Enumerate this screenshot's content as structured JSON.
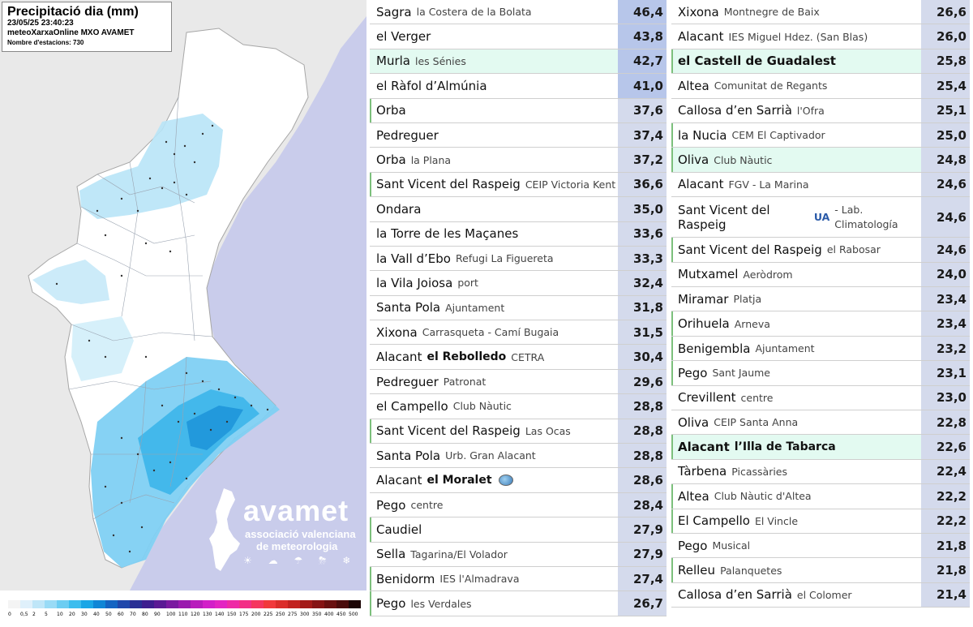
{
  "map": {
    "title": "Precipitació dia (mm)",
    "datetime": "23/05/25 23:40:23",
    "source": "meteoXarxaOnline MXO AVAMET",
    "stations_count": "Nombre d'estacions: 730",
    "logo": {
      "brand": "avamet",
      "line1": "associació valenciana",
      "line2": "de meteorologia",
      "icons": "☀ ☁ ☂ ⛈ ❄"
    },
    "legend": {
      "labels": [
        "0",
        "0,5",
        "2",
        "5",
        "10",
        "20",
        "30",
        "40",
        "50",
        "60",
        "70",
        "80",
        "90",
        "100",
        "110",
        "120",
        "130",
        "140",
        "150",
        "175",
        "200",
        "225",
        "250",
        "275",
        "300",
        "350",
        "400",
        "450",
        "500"
      ],
      "colors": [
        "#f4f4f4",
        "#dff0fb",
        "#bfe6f8",
        "#99dbf6",
        "#6ccdf2",
        "#3cbdee",
        "#1aa6e6",
        "#0f86d6",
        "#1464c2",
        "#1f47ab",
        "#2a2f95",
        "#3e1e8f",
        "#5a1a94",
        "#7a1aa0",
        "#9a1aae",
        "#b81cbc",
        "#d21fc8",
        "#e324c2",
        "#ee2aa6",
        "#f32f86",
        "#f5365f",
        "#f1393b",
        "#db2d2a",
        "#c2221f",
        "#a31a18",
        "#861414",
        "#691010",
        "#4a0b0b",
        "#1c0505"
      ]
    }
  },
  "left_table": [
    {
      "station": "Sagra",
      "location": "la Costera de la Bolata",
      "value": "46,4",
      "hot": true
    },
    {
      "station": "el Verger",
      "location": "",
      "value": "43,8",
      "hot": true
    },
    {
      "station": "Murla",
      "location": "les Sénies",
      "value": "42,7",
      "hot": true,
      "bg": true
    },
    {
      "station": "el Ràfol d’Almúnia",
      "location": "",
      "value": "41,0",
      "hot": true
    },
    {
      "station": "Orba",
      "location": "",
      "value": "37,6",
      "hl": true
    },
    {
      "station": "Pedreguer",
      "location": "",
      "value": "37,4"
    },
    {
      "station": "Orba",
      "location": "la Plana",
      "value": "37,2"
    },
    {
      "station": "Sant Vicent del Raspeig",
      "location": "CEIP Victoria Kent",
      "value": "36,6",
      "hl": true
    },
    {
      "station": "Ondara",
      "location": "",
      "value": "35,0"
    },
    {
      "station": "la Torre de les Maçanes",
      "location": "",
      "value": "33,6"
    },
    {
      "station": "la Vall d’Ebo",
      "location": "Refugi La Figuereta",
      "value": "33,3"
    },
    {
      "station": "la Vila Joiosa",
      "location": "port",
      "value": "32,4"
    },
    {
      "station": "Santa Pola",
      "location": "Ajuntament",
      "value": "31,8"
    },
    {
      "station": "Xixona",
      "location": "Carrasqueta - Camí Bugaia",
      "value": "31,5"
    },
    {
      "station": "Alacant",
      "location_bold": "el Rebolledo",
      "location": "CETRA",
      "value": "30,4"
    },
    {
      "station": "Pedreguer",
      "location": "Patronat",
      "value": "29,6"
    },
    {
      "station": "el Campello",
      "location": "Club Nàutic",
      "value": "28,8"
    },
    {
      "station": "Sant Vicent del Raspeig",
      "location": "Las Ocas",
      "value": "28,8",
      "hl": true
    },
    {
      "station": "Santa Pola",
      "location": "Urb. Gran Alacant",
      "value": "28,8"
    },
    {
      "station": "Alacant",
      "location_bold": "el Moralet",
      "location": "",
      "value": "28,6",
      "icon": "globe-icon"
    },
    {
      "station": "Pego",
      "location": "centre",
      "value": "28,4"
    },
    {
      "station": "Caudiel",
      "location": "",
      "value": "27,9",
      "hl": true
    },
    {
      "station": "Sella",
      "location": "Tagarina/El Volador",
      "value": "27,9"
    },
    {
      "station": "Benidorm",
      "location": "IES l'Almadrava",
      "value": "27,4",
      "hl": true
    },
    {
      "station": "Pego",
      "location": "les Verdales",
      "value": "26,7",
      "hl": true
    }
  ],
  "right_table": [
    {
      "station": "Xixona",
      "location": "Montnegre de Baix",
      "value": "26,6"
    },
    {
      "station": "Alacant",
      "location": "IES Miguel Hdez. (San Blas)",
      "value": "26,0"
    },
    {
      "station": "el Castell de Guadalest",
      "location": "",
      "value": "25,8",
      "bold": true,
      "bg": true,
      "hl": true
    },
    {
      "station": "Altea",
      "location": "Comunitat de Regants",
      "value": "25,4"
    },
    {
      "station": "Callosa d’en Sarrià",
      "location": "l'Ofra",
      "value": "25,1"
    },
    {
      "station": "la Nucia",
      "location": "CEM El Captivador",
      "value": "25,0",
      "hl": true
    },
    {
      "station": "Oliva",
      "location": "Club Nàutic",
      "value": "24,8",
      "bg": true,
      "hl": true
    },
    {
      "station": "Alacant",
      "location": "FGV - La Marina",
      "value": "24,6"
    },
    {
      "station": "Sant Vicent del Raspeig",
      "location": "- Lab. Climatología",
      "logo_text": "UA",
      "value": "24,6",
      "tall": true
    },
    {
      "station": "Sant Vicent del Raspeig",
      "location": "el Rabosar",
      "value": "24,6",
      "hl": true
    },
    {
      "station": "Mutxamel",
      "location": "Aeròdrom",
      "value": "24,0"
    },
    {
      "station": "Miramar",
      "location": "Platja",
      "value": "23,4"
    },
    {
      "station": "Orihuela",
      "location": "Arneva",
      "value": "23,4",
      "hl": true
    },
    {
      "station": "Benigembla",
      "location": "Ajuntament",
      "value": "23,2",
      "hl": true
    },
    {
      "station": "Pego",
      "location": "Sant Jaume",
      "value": "23,1",
      "hl": true
    },
    {
      "station": "Crevillent",
      "location": "centre",
      "value": "23,0"
    },
    {
      "station": "Oliva",
      "location": "CEIP Santa Anna",
      "value": "22,8"
    },
    {
      "station": "Alacant",
      "location": "l’Illa de Tabarca",
      "value": "22,6",
      "bold": true,
      "bg": true,
      "hl": true,
      "loc_bold": true
    },
    {
      "station": "Tàrbena",
      "location": "Picassàries",
      "value": "22,4"
    },
    {
      "station": "Altea",
      "location": "Club Nàutic d'Altea",
      "value": "22,2",
      "hl": true
    },
    {
      "station": "El Campello",
      "location": "El Vincle",
      "value": "22,2",
      "hl": true
    },
    {
      "station": "Pego",
      "location": "Musical",
      "value": "21,8"
    },
    {
      "station": "Relleu",
      "location": "Palanquetes",
      "value": "21,8",
      "hl": true
    },
    {
      "station": "Callosa d’en Sarrià",
      "location": "el Colomer",
      "value": "21,4"
    }
  ]
}
